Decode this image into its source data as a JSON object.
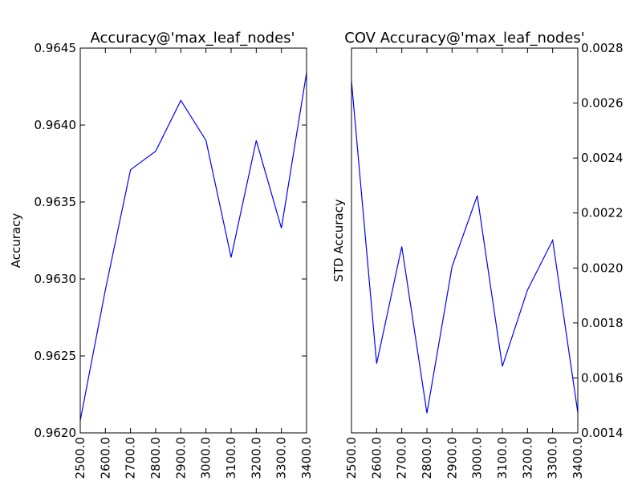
{
  "chart_data": [
    {
      "type": "line",
      "title": "Accuracy@'max_leaf_nodes'",
      "xlabel": "",
      "ylabel": "Accuracy",
      "ylabel_side": "left",
      "x": [
        2500,
        2600,
        2700,
        2800,
        2900,
        3000,
        3100,
        3200,
        3300,
        3400
      ],
      "xtick_labels": [
        "2500.0",
        "2600.0",
        "2700.0",
        "2800.0",
        "2900.0",
        "3000.0",
        "3100.0",
        "3200.0",
        "3300.0",
        "3400.0"
      ],
      "xlim": [
        2500,
        3400
      ],
      "ylim": [
        0.962,
        0.9645
      ],
      "ytick_values": [
        0.962,
        0.9625,
        0.963,
        0.9635,
        0.964,
        0.9645
      ],
      "ytick_labels": [
        "0.9620",
        "0.9625",
        "0.9630",
        "0.9635",
        "0.9640",
        "0.9645"
      ],
      "series": [
        {
          "name": "Accuracy",
          "color": "#0000ff",
          "values": [
            0.96208,
            0.96293,
            0.96371,
            0.96383,
            0.96416,
            0.9639,
            0.96314,
            0.9639,
            0.96333,
            0.96434
          ]
        }
      ]
    },
    {
      "type": "line",
      "title": "COV Accuracy@'max_leaf_nodes'",
      "xlabel": "",
      "ylabel": "STD Accuracy",
      "ylabel_side": "left",
      "ytick_side": "right",
      "x": [
        2500,
        2600,
        2700,
        2800,
        2900,
        3000,
        3100,
        3200,
        3300,
        3400
      ],
      "xtick_labels": [
        "2500.0",
        "2600.0",
        "2700.0",
        "2800.0",
        "2900.0",
        "3000.0",
        "3100.0",
        "3200.0",
        "3300.0",
        "3400.0"
      ],
      "xlim": [
        2500,
        3400
      ],
      "ylim": [
        0.0014,
        0.0028
      ],
      "ytick_values": [
        0.0014,
        0.0016,
        0.0018,
        0.002,
        0.0022,
        0.0024,
        0.0026,
        0.0028
      ],
      "ytick_labels": [
        "0.0014",
        "0.0016",
        "0.0018",
        "0.0020",
        "0.0022",
        "0.0024",
        "0.0026",
        "0.0028"
      ],
      "series": [
        {
          "name": "STD Accuracy",
          "color": "#0000ff",
          "values": [
            0.00268,
            0.001652,
            0.002078,
            0.001472,
            0.002005,
            0.002263,
            0.001642,
            0.00192,
            0.002101,
            0.001474
          ]
        }
      ]
    }
  ]
}
